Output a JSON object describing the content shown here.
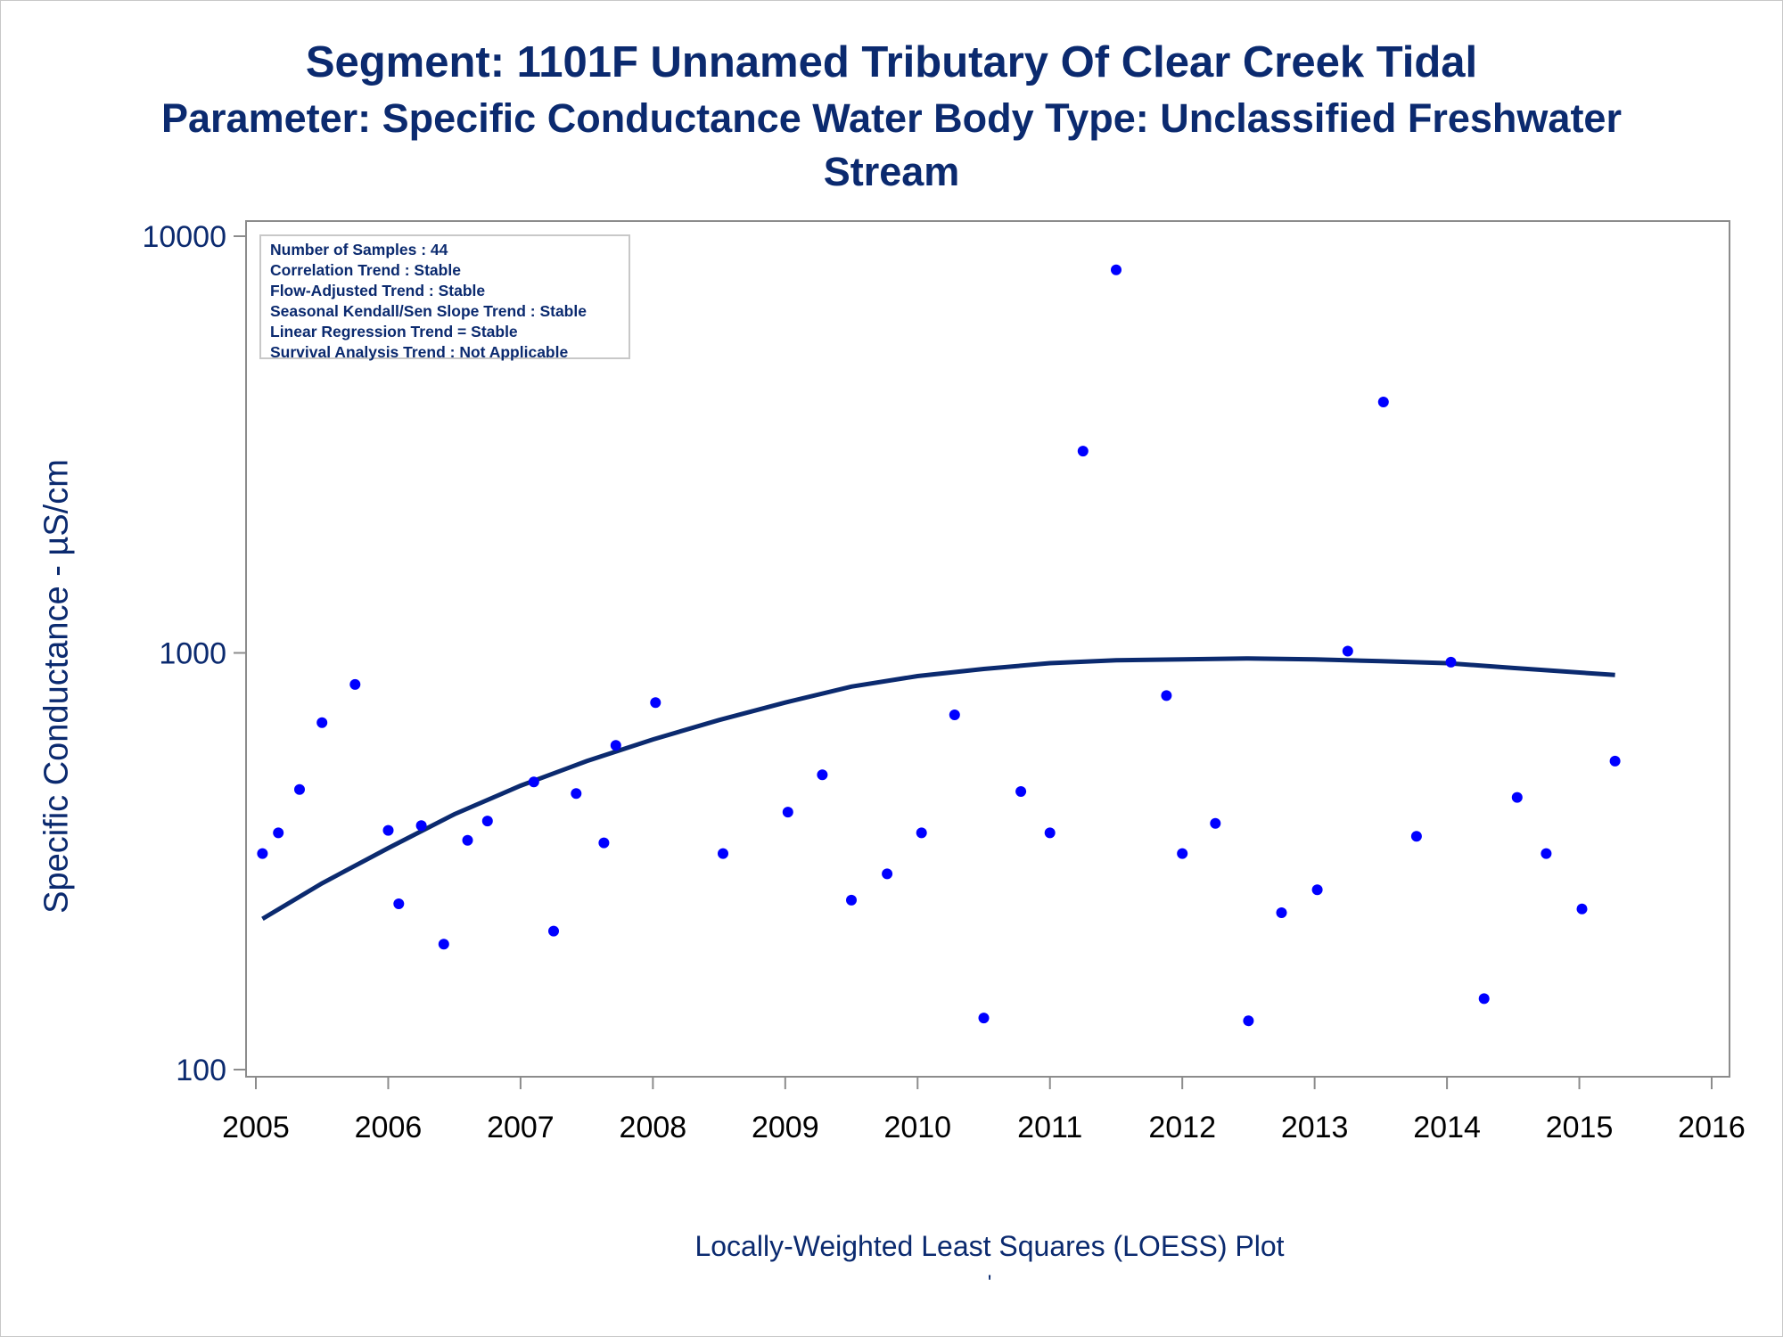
{
  "header": {
    "title": "Segment: 1101F  Unnamed Tributary Of Clear Creek Tidal",
    "subtitle_line1": "Parameter: Specific Conductance   Water Body Type: Unclassified Freshwater",
    "subtitle_line2": "Stream"
  },
  "stats_box": {
    "lines": [
      "Number of Samples : 44",
      "Correlation Trend : Stable",
      "Flow-Adjusted Trend : Stable",
      "Seasonal Kendall/Sen Slope Trend : Stable",
      "Linear Regression Trend = Stable",
      "Survival Analysis Trend : Not Applicable"
    ]
  },
  "footer": {
    "caption": "Locally-Weighted Least Squares (LOESS) Plot",
    "tick_mark": "'"
  },
  "colors": {
    "text": "#0b2a6f",
    "points": "#0000ff",
    "loess_line": "#0b2a6f",
    "axis": "#8c8c8c"
  },
  "chart_data": {
    "type": "scatter",
    "ylabel": "Specific Conductance -  µS/cm",
    "xlabel": "",
    "y_scale": "log",
    "ylim": [
      100,
      10000
    ],
    "y_ticks": [
      "100",
      "1000",
      "10000"
    ],
    "xlim": [
      2005,
      2016
    ],
    "x_ticks": [
      "2005",
      "2006",
      "2007",
      "2008",
      "2009",
      "2010",
      "2011",
      "2012",
      "2013",
      "2014",
      "2015",
      "2016"
    ],
    "series": [
      {
        "type": "scatter",
        "points": [
          [
            2005.05,
            330
          ],
          [
            2005.17,
            370
          ],
          [
            2005.33,
            470
          ],
          [
            2005.5,
            680
          ],
          [
            2005.75,
            840
          ],
          [
            2006.0,
            375
          ],
          [
            2006.08,
            250
          ],
          [
            2006.25,
            385
          ],
          [
            2006.42,
            200
          ],
          [
            2006.6,
            355
          ],
          [
            2006.75,
            395
          ],
          [
            2007.1,
            490
          ],
          [
            2007.25,
            215
          ],
          [
            2007.42,
            460
          ],
          [
            2007.63,
            350
          ],
          [
            2007.72,
            600
          ],
          [
            2008.02,
            760
          ],
          [
            2008.53,
            330
          ],
          [
            2009.02,
            415
          ],
          [
            2009.28,
            510
          ],
          [
            2009.5,
            255
          ],
          [
            2009.77,
            295
          ],
          [
            2010.03,
            370
          ],
          [
            2010.28,
            710
          ],
          [
            2010.5,
            133
          ],
          [
            2010.78,
            465
          ],
          [
            2011.0,
            370
          ],
          [
            2011.25,
            3050
          ],
          [
            2011.5,
            8300
          ],
          [
            2011.88,
            790
          ],
          [
            2012.0,
            330
          ],
          [
            2012.25,
            390
          ],
          [
            2012.5,
            131
          ],
          [
            2012.75,
            238
          ],
          [
            2013.02,
            270
          ],
          [
            2013.25,
            1010
          ],
          [
            2013.52,
            4000
          ],
          [
            2013.77,
            363
          ],
          [
            2014.03,
            950
          ],
          [
            2014.28,
            148
          ],
          [
            2014.53,
            450
          ],
          [
            2014.75,
            330
          ],
          [
            2015.02,
            243
          ],
          [
            2015.27,
            550
          ]
        ]
      },
      {
        "type": "line",
        "points": [
          [
            2005.05,
            230
          ],
          [
            2005.5,
            280
          ],
          [
            2006.0,
            340
          ],
          [
            2006.5,
            410
          ],
          [
            2007.0,
            480
          ],
          [
            2007.5,
            550
          ],
          [
            2008.0,
            620
          ],
          [
            2008.5,
            690
          ],
          [
            2009.0,
            760
          ],
          [
            2009.5,
            830
          ],
          [
            2010.0,
            880
          ],
          [
            2010.5,
            915
          ],
          [
            2011.0,
            945
          ],
          [
            2011.5,
            960
          ],
          [
            2012.0,
            965
          ],
          [
            2012.5,
            970
          ],
          [
            2013.0,
            965
          ],
          [
            2013.5,
            955
          ],
          [
            2014.0,
            945
          ],
          [
            2014.5,
            920
          ],
          [
            2015.27,
            885
          ]
        ]
      }
    ]
  }
}
